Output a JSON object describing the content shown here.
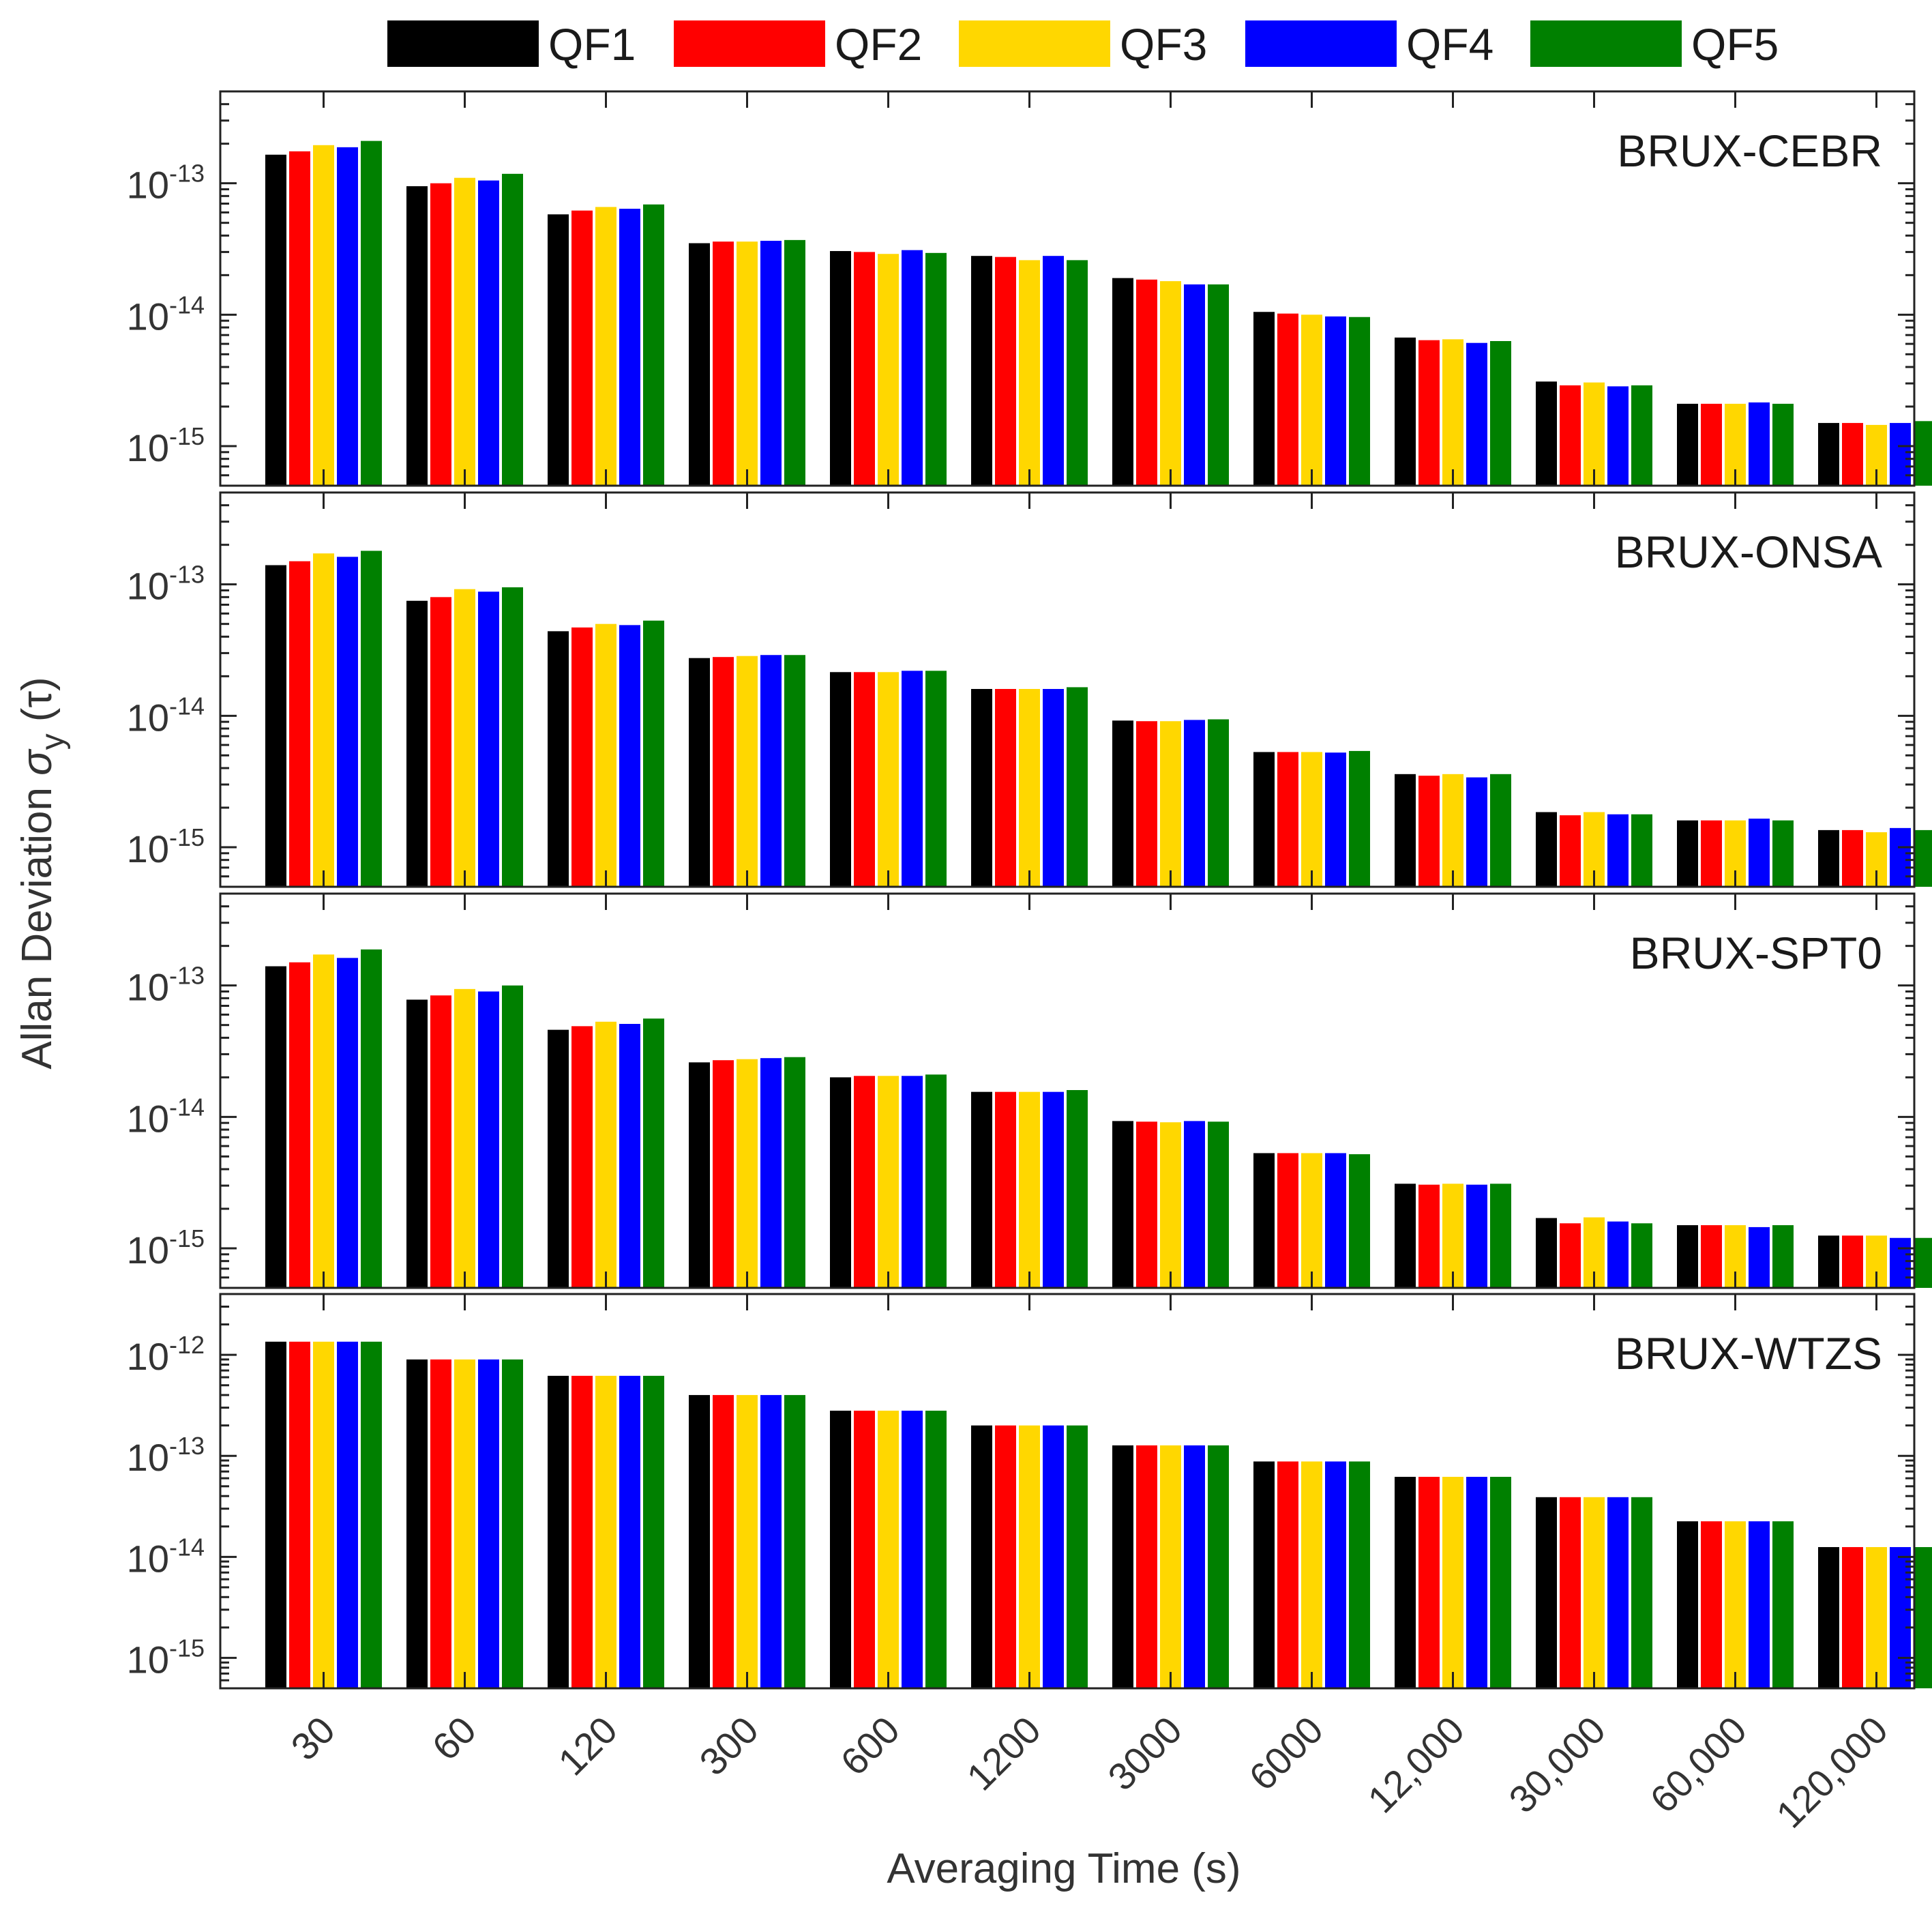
{
  "chart_data": {
    "type": "bar",
    "scale": "log",
    "xlabel": "Averaging Time (s)",
    "ylabel_prefix": "Allan Deviation ",
    "ylabel_symbol": "σ",
    "ylabel_subscript": "y",
    "ylabel_suffix": " (τ)",
    "categories": [
      "30",
      "60",
      "120",
      "300",
      "600",
      "1200",
      "3000",
      "6000",
      "12,000",
      "30,000",
      "60,000",
      "120,000"
    ],
    "series_names": [
      "QF1",
      "QF2",
      "QF3",
      "QF4",
      "QF5"
    ],
    "colors": [
      "#000000",
      "#ff0000",
      "#ffd700",
      "#0000ff",
      "#008000"
    ],
    "panels": [
      {
        "name": "BRUX-CEBR",
        "ylim": [
          5e-16,
          5e-13
        ],
        "yticks": [
          {
            "base": "10",
            "exp": "-15",
            "value": 1e-15
          },
          {
            "base": "10",
            "exp": "-14",
            "value": 1e-14
          },
          {
            "base": "10",
            "exp": "-13",
            "value": 1e-13
          }
        ],
        "values": [
          [
            1.65e-13,
            1.75e-13,
            1.95e-13,
            1.88e-13,
            2.1e-13
          ],
          [
            9.5e-14,
            1e-13,
            1.1e-13,
            1.05e-13,
            1.18e-13
          ],
          [
            5.8e-14,
            6.2e-14,
            6.6e-14,
            6.4e-14,
            6.9e-14
          ],
          [
            3.5e-14,
            3.6e-14,
            3.6e-14,
            3.65e-14,
            3.7e-14
          ],
          [
            3.05e-14,
            3e-14,
            2.9e-14,
            3.1e-14,
            2.95e-14
          ],
          [
            2.8e-14,
            2.75e-14,
            2.6e-14,
            2.8e-14,
            2.6e-14
          ],
          [
            1.9e-14,
            1.85e-14,
            1.8e-14,
            1.7e-14,
            1.7e-14
          ],
          [
            1.05e-14,
            1.02e-14,
            1e-14,
            9.7e-15,
            9.6e-15
          ],
          [
            6.7e-15,
            6.4e-15,
            6.5e-15,
            6.1e-15,
            6.3e-15
          ],
          [
            3.1e-15,
            2.9e-15,
            3.05e-15,
            2.85e-15,
            2.9e-15
          ],
          [
            2.1e-15,
            2.1e-15,
            2.1e-15,
            2.15e-15,
            2.1e-15
          ],
          [
            1.5e-15,
            1.5e-15,
            1.45e-15,
            1.5e-15,
            1.55e-15
          ]
        ]
      },
      {
        "name": "BRUX-ONSA",
        "ylim": [
          5e-16,
          5e-13
        ],
        "yticks": [
          {
            "base": "10",
            "exp": "-15",
            "value": 1e-15
          },
          {
            "base": "10",
            "exp": "-14",
            "value": 1e-14
          },
          {
            "base": "10",
            "exp": "-13",
            "value": 1e-13
          }
        ],
        "values": [
          [
            1.4e-13,
            1.5e-13,
            1.72e-13,
            1.62e-13,
            1.8e-13
          ],
          [
            7.5e-14,
            8e-14,
            9.2e-14,
            8.8e-14,
            9.5e-14
          ],
          [
            4.4e-14,
            4.7e-14,
            5e-14,
            4.9e-14,
            5.3e-14
          ],
          [
            2.75e-14,
            2.8e-14,
            2.85e-14,
            2.9e-14,
            2.9e-14
          ],
          [
            2.15e-14,
            2.15e-14,
            2.15e-14,
            2.2e-14,
            2.2e-14
          ],
          [
            1.6e-14,
            1.6e-14,
            1.6e-14,
            1.6e-14,
            1.65e-14
          ],
          [
            9.2e-15,
            9.1e-15,
            9.1e-15,
            9.3e-15,
            9.4e-15
          ],
          [
            5.3e-15,
            5.3e-15,
            5.3e-15,
            5.25e-15,
            5.4e-15
          ],
          [
            3.6e-15,
            3.5e-15,
            3.6e-15,
            3.4e-15,
            3.6e-15
          ],
          [
            1.85e-15,
            1.75e-15,
            1.85e-15,
            1.78e-15,
            1.78e-15
          ],
          [
            1.6e-15,
            1.6e-15,
            1.6e-15,
            1.65e-15,
            1.6e-15
          ],
          [
            1.35e-15,
            1.35e-15,
            1.3e-15,
            1.4e-15,
            1.35e-15
          ]
        ]
      },
      {
        "name": "BRUX-SPT0",
        "ylim": [
          5e-16,
          5e-13
        ],
        "yticks": [
          {
            "base": "10",
            "exp": "-15",
            "value": 1e-15
          },
          {
            "base": "10",
            "exp": "-14",
            "value": 1e-14
          },
          {
            "base": "10",
            "exp": "-13",
            "value": 1e-13
          }
        ],
        "values": [
          [
            1.4e-13,
            1.5e-13,
            1.72e-13,
            1.62e-13,
            1.88e-13
          ],
          [
            7.8e-14,
            8.4e-14,
            9.4e-14,
            9e-14,
            1e-13
          ],
          [
            4.6e-14,
            4.9e-14,
            5.3e-14,
            5.1e-14,
            5.6e-14
          ],
          [
            2.6e-14,
            2.7e-14,
            2.75e-14,
            2.8e-14,
            2.85e-14
          ],
          [
            2e-14,
            2.05e-14,
            2.05e-14,
            2.05e-14,
            2.1e-14
          ],
          [
            1.55e-14,
            1.55e-14,
            1.55e-14,
            1.55e-14,
            1.6e-14
          ],
          [
            9.3e-15,
            9.2e-15,
            9.1e-15,
            9.3e-15,
            9.2e-15
          ],
          [
            5.3e-15,
            5.3e-15,
            5.3e-15,
            5.3e-15,
            5.2e-15
          ],
          [
            3.1e-15,
            3.05e-15,
            3.1e-15,
            3.05e-15,
            3.1e-15
          ],
          [
            1.7e-15,
            1.55e-15,
            1.72e-15,
            1.6e-15,
            1.55e-15
          ],
          [
            1.5e-15,
            1.5e-15,
            1.5e-15,
            1.45e-15,
            1.5e-15
          ],
          [
            1.25e-15,
            1.25e-15,
            1.25e-15,
            1.2e-15,
            1.2e-15
          ]
        ]
      },
      {
        "name": "BRUX-WTZS",
        "ylim": [
          5e-16,
          4e-12
        ],
        "yticks": [
          {
            "base": "10",
            "exp": "-15",
            "value": 1e-15
          },
          {
            "base": "10",
            "exp": "-14",
            "value": 1e-14
          },
          {
            "base": "10",
            "exp": "-13",
            "value": 1e-13
          },
          {
            "base": "10",
            "exp": "-12",
            "value": 1e-12
          }
        ],
        "values": [
          [
            1.35e-12,
            1.35e-12,
            1.35e-12,
            1.35e-12,
            1.35e-12
          ],
          [
            9e-13,
            9e-13,
            9e-13,
            9e-13,
            9e-13
          ],
          [
            6.2e-13,
            6.2e-13,
            6.2e-13,
            6.2e-13,
            6.2e-13
          ],
          [
            4e-13,
            4e-13,
            4e-13,
            4e-13,
            4e-13
          ],
          [
            2.8e-13,
            2.8e-13,
            2.8e-13,
            2.8e-13,
            2.8e-13
          ],
          [
            2e-13,
            2e-13,
            2e-13,
            2e-13,
            2e-13
          ],
          [
            1.27e-13,
            1.27e-13,
            1.27e-13,
            1.27e-13,
            1.27e-13
          ],
          [
            8.8e-14,
            8.8e-14,
            8.8e-14,
            8.8e-14,
            8.8e-14
          ],
          [
            6.2e-14,
            6.2e-14,
            6.2e-14,
            6.2e-14,
            6.2e-14
          ],
          [
            3.9e-14,
            3.9e-14,
            3.9e-14,
            3.9e-14,
            3.9e-14
          ],
          [
            2.25e-14,
            2.25e-14,
            2.25e-14,
            2.25e-14,
            2.25e-14
          ],
          [
            1.25e-14,
            1.25e-14,
            1.25e-14,
            1.25e-14,
            1.25e-14
          ]
        ]
      }
    ]
  }
}
